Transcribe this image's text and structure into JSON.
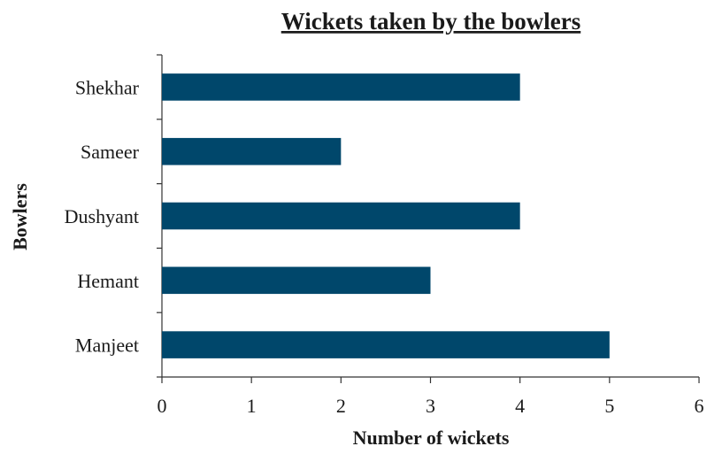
{
  "chart_data": {
    "type": "bar",
    "orientation": "horizontal",
    "title": "Wickets taken by the bowlers",
    "xlabel": "Number of wickets",
    "ylabel": "Bowlers",
    "categories": [
      "Shekhar",
      "Sameer",
      "Dushyant",
      "Hemant",
      "Manjeet"
    ],
    "values": [
      4,
      2,
      4,
      3,
      5
    ],
    "xlim": [
      0,
      6
    ],
    "xticks": [
      "0",
      "1",
      "2",
      "3",
      "4",
      "5",
      "6"
    ],
    "grid": false,
    "legend": "none",
    "bar_color": "#00476b"
  }
}
